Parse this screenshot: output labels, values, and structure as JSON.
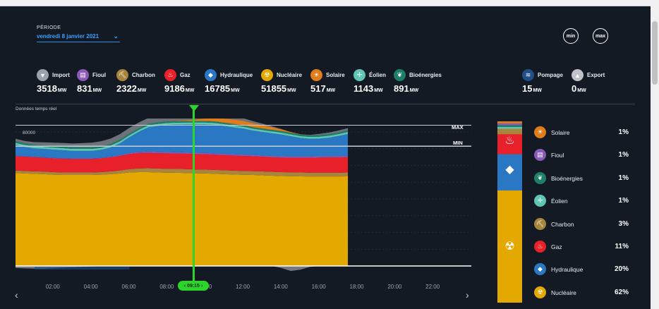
{
  "period": {
    "label": "PÉRIODE",
    "value": "vendredi 8 janvier 2021"
  },
  "buttons": {
    "min": "min",
    "max": "max"
  },
  "legend": [
    {
      "name": "Import",
      "value": "3518",
      "unit": "MW",
      "color": "#9aa1ab",
      "icon": "import-arrow-icon",
      "glyph": "▼"
    },
    {
      "name": "Fioul",
      "value": "831",
      "unit": "MW",
      "color": "#8a5bb8",
      "icon": "oil-barrel-icon",
      "glyph": "▤"
    },
    {
      "name": "Charbon",
      "value": "2322",
      "unit": "MW",
      "color": "#a7853d",
      "icon": "coal-icon",
      "glyph": "⛏"
    },
    {
      "name": "Gaz",
      "value": "9186",
      "unit": "MW",
      "color": "#e8202a",
      "icon": "flame-icon",
      "glyph": "♨"
    },
    {
      "name": "Hydraulique",
      "value": "16785",
      "unit": "MW",
      "color": "#2a77c4",
      "icon": "water-drop-icon",
      "glyph": "◆"
    },
    {
      "name": "Nucléaire",
      "value": "51855",
      "unit": "MW",
      "color": "#e4a900",
      "icon": "nuclear-plant-icon",
      "glyph": "☢"
    },
    {
      "name": "Solaire",
      "value": "517",
      "unit": "MW",
      "color": "#e07c1a",
      "icon": "sun-icon",
      "glyph": "☀"
    },
    {
      "name": "Éolien",
      "value": "1143",
      "unit": "MW",
      "color": "#5fc6b4",
      "icon": "wind-turbine-icon",
      "glyph": "✢"
    },
    {
      "name": "Bioénergies",
      "value": "891",
      "unit": "MW",
      "color": "#1d7f68",
      "icon": "leaf-icon",
      "glyph": "❦"
    },
    {
      "name": "Pompage",
      "value": "15",
      "unit": "MW",
      "color": "#1f4f86",
      "icon": "pump-icon",
      "glyph": "≋"
    },
    {
      "name": "Export",
      "value": "0",
      "unit": "MW",
      "color": "#bfc3c8",
      "icon": "export-arrow-icon",
      "glyph": "▲"
    }
  ],
  "realtime_label": "Données temps réel",
  "chart_data": {
    "type": "area",
    "x": [
      "00:00",
      "00:30",
      "01:00",
      "01:30",
      "02:00",
      "02:30",
      "03:00",
      "03:30",
      "04:00",
      "04:30",
      "05:00",
      "05:30",
      "06:00",
      "06:30",
      "07:00",
      "07:30",
      "08:00",
      "08:30",
      "09:00",
      "09:30",
      "10:00",
      "10:30",
      "11:00",
      "11:30",
      "12:00",
      "12:30",
      "13:00",
      "13:30",
      "14:00",
      "14:30",
      "15:00",
      "15:30",
      "16:00",
      "16:30",
      "17:00",
      "17:30"
    ],
    "yticks": [
      10000,
      20000,
      30000,
      40000,
      50000,
      60000,
      70000,
      80000
    ],
    "ylim": [
      -3000,
      88000
    ],
    "series": [
      {
        "name": "Nucléaire",
        "color": "#e4a900",
        "values": [
          55500,
          55200,
          55000,
          54800,
          54500,
          54300,
          54300,
          54300,
          54300,
          54500,
          54800,
          55200,
          55800,
          56000,
          56000,
          55800,
          55700,
          55600,
          55500,
          55300,
          55200,
          55000,
          54800,
          54600,
          54400,
          54300,
          54100,
          53900,
          53700,
          53600,
          53500,
          53400,
          53400,
          53400,
          53400,
          53500
        ]
      },
      {
        "name": "Charbon",
        "color": "#a7853d",
        "values": [
          1500,
          1500,
          1500,
          1500,
          1500,
          1500,
          1500,
          1500,
          1500,
          1500,
          1600,
          1800,
          2000,
          2200,
          2300,
          2300,
          2300,
          2300,
          2300,
          2300,
          2300,
          2300,
          2300,
          2300,
          2300,
          2300,
          2300,
          2300,
          2300,
          2300,
          2300,
          2300,
          2300,
          2300,
          2300,
          2300
        ]
      },
      {
        "name": "Gaz",
        "color": "#e8202a",
        "values": [
          8500,
          8500,
          8400,
          8300,
          8200,
          8200,
          8100,
          8100,
          8100,
          8200,
          8400,
          8700,
          9000,
          9200,
          9200,
          9200,
          9200,
          9200,
          9200,
          9200,
          9200,
          9100,
          9100,
          9000,
          9000,
          8900,
          8800,
          8700,
          8700,
          8700,
          8800,
          8900,
          9000,
          9100,
          9100,
          9200
        ]
      },
      {
        "name": "Fioul",
        "color": "#8a5bb8",
        "values": [
          300,
          300,
          300,
          300,
          300,
          300,
          300,
          300,
          300,
          300,
          400,
          500,
          600,
          700,
          800,
          800,
          800,
          800,
          800,
          800,
          800,
          800,
          800,
          800,
          800,
          800,
          800,
          800,
          800,
          800,
          800,
          800,
          800,
          800,
          800,
          800
        ]
      },
      {
        "name": "Hydraulique",
        "color": "#2a77c4",
        "values": [
          6500,
          5500,
          5000,
          5000,
          5000,
          4800,
          4500,
          4500,
          4500,
          4800,
          5500,
          7000,
          9500,
          12000,
          14500,
          15500,
          16200,
          16500,
          16700,
          16900,
          17000,
          17000,
          16500,
          16000,
          15500,
          14500,
          14000,
          13500,
          13000,
          12000,
          11000,
          10500,
          10500,
          11000,
          12000,
          13000
        ]
      },
      {
        "name": "Éolien",
        "color": "#5fc6b4",
        "values": [
          1200,
          1200,
          1200,
          1200,
          1200,
          1200,
          1200,
          1200,
          1200,
          1200,
          1200,
          1200,
          1200,
          1200,
          1200,
          1200,
          1150,
          1150,
          1150,
          1150,
          1150,
          1150,
          1150,
          1150,
          1150,
          1150,
          1150,
          1150,
          1150,
          1150,
          1150,
          1150,
          1150,
          1150,
          1150,
          1150
        ]
      },
      {
        "name": "Bioénergies",
        "color": "#1d7f68",
        "values": [
          900,
          900,
          900,
          900,
          900,
          900,
          900,
          900,
          900,
          900,
          900,
          900,
          900,
          900,
          900,
          900,
          900,
          900,
          900,
          900,
          900,
          900,
          900,
          900,
          900,
          900,
          900,
          900,
          900,
          900,
          900,
          900,
          900,
          900,
          900,
          900
        ]
      },
      {
        "name": "Solaire",
        "color": "#e07c1a",
        "values": [
          0,
          0,
          0,
          0,
          0,
          0,
          0,
          0,
          0,
          0,
          0,
          0,
          0,
          0,
          0,
          0,
          100,
          300,
          500,
          900,
          1500,
          2000,
          2400,
          2600,
          2600,
          2400,
          2100,
          1600,
          1000,
          500,
          200,
          0,
          0,
          0,
          0,
          0
        ]
      },
      {
        "name": "Import",
        "color": "#8c9097",
        "values": [
          1500,
          1500,
          1600,
          1800,
          2000,
          2200,
          2300,
          2500,
          2800,
          3000,
          3200,
          3400,
          3500,
          3500,
          3500,
          3400,
          3500,
          3500,
          3500,
          3400,
          3200,
          3000,
          2500,
          2000,
          1500,
          1200,
          800,
          500,
          200,
          0,
          0,
          300,
          800,
          1000,
          1200,
          1400
        ]
      }
    ],
    "export": [
      1200,
      1400,
      1600,
      1500,
      1300,
      1000,
      800,
      500,
      300,
      0,
      0,
      0,
      0,
      0,
      0,
      0,
      0,
      0,
      0,
      0,
      0,
      0,
      0,
      0,
      0,
      0,
      0,
      0,
      1200,
      3000,
      2200,
      600,
      0,
      0,
      0,
      0
    ],
    "max_line": 84000,
    "min_line": 71500,
    "max_label": "MAX",
    "min_label": "MIN",
    "xtick_labels": [
      "02:00",
      "04:00",
      "06:00",
      "08:00",
      "10:00",
      "12:00",
      "14:00",
      "16:00",
      "18:00",
      "20:00",
      "22:00"
    ]
  },
  "cursor_time": "09:15",
  "shares": [
    {
      "name": "Solaire",
      "pct": "1%",
      "value": 1,
      "color": "#e07c1a",
      "icon": "sun-icon",
      "glyph": "☀"
    },
    {
      "name": "Fioul",
      "pct": "1%",
      "value": 1,
      "color": "#8a5bb8",
      "icon": "oil-barrel-icon",
      "glyph": "▤"
    },
    {
      "name": "Bioénergies",
      "pct": "1%",
      "value": 1,
      "color": "#1d7f68",
      "icon": "leaf-icon",
      "glyph": "❦"
    },
    {
      "name": "Éolien",
      "pct": "1%",
      "value": 1,
      "color": "#5fc6b4",
      "icon": "wind-turbine-icon",
      "glyph": "✢"
    },
    {
      "name": "Charbon",
      "pct": "3%",
      "value": 3,
      "color": "#a7853d",
      "icon": "coal-icon",
      "glyph": "⛏"
    },
    {
      "name": "Gaz",
      "pct": "11%",
      "value": 11,
      "color": "#e8202a",
      "icon": "flame-icon",
      "glyph": "♨"
    },
    {
      "name": "Hydraulique",
      "pct": "20%",
      "value": 20,
      "color": "#2a77c4",
      "icon": "water-drop-icon",
      "glyph": "◆"
    },
    {
      "name": "Nucléaire",
      "pct": "62%",
      "value": 62,
      "color": "#e4a900",
      "icon": "nuclear-plant-icon",
      "glyph": "☢"
    }
  ]
}
